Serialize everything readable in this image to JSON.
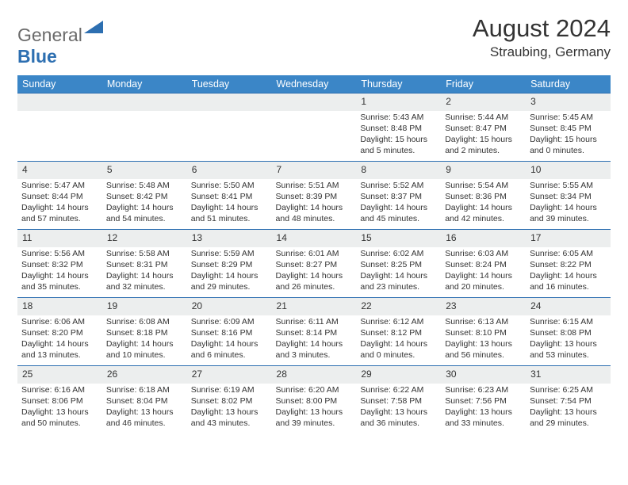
{
  "logo": {
    "text1": "General",
    "text2": "Blue"
  },
  "title": "August 2024",
  "subtitle": "Straubing, Germany",
  "colors": {
    "header_bg": "#3b86c7",
    "header_fg": "#ffffff",
    "daynum_bg": "#eceeee",
    "border": "#2d6fb1",
    "logo_gray": "#6b6b6b",
    "logo_blue": "#2d6fb1",
    "text": "#333333",
    "background": "#ffffff"
  },
  "weekdays": [
    "Sunday",
    "Monday",
    "Tuesday",
    "Wednesday",
    "Thursday",
    "Friday",
    "Saturday"
  ],
  "weeks": [
    [
      null,
      null,
      null,
      null,
      {
        "n": "1",
        "sr": "Sunrise: 5:43 AM",
        "ss": "Sunset: 8:48 PM",
        "d1": "Daylight: 15 hours",
        "d2": "and 5 minutes."
      },
      {
        "n": "2",
        "sr": "Sunrise: 5:44 AM",
        "ss": "Sunset: 8:47 PM",
        "d1": "Daylight: 15 hours",
        "d2": "and 2 minutes."
      },
      {
        "n": "3",
        "sr": "Sunrise: 5:45 AM",
        "ss": "Sunset: 8:45 PM",
        "d1": "Daylight: 15 hours",
        "d2": "and 0 minutes."
      }
    ],
    [
      {
        "n": "4",
        "sr": "Sunrise: 5:47 AM",
        "ss": "Sunset: 8:44 PM",
        "d1": "Daylight: 14 hours",
        "d2": "and 57 minutes."
      },
      {
        "n": "5",
        "sr": "Sunrise: 5:48 AM",
        "ss": "Sunset: 8:42 PM",
        "d1": "Daylight: 14 hours",
        "d2": "and 54 minutes."
      },
      {
        "n": "6",
        "sr": "Sunrise: 5:50 AM",
        "ss": "Sunset: 8:41 PM",
        "d1": "Daylight: 14 hours",
        "d2": "and 51 minutes."
      },
      {
        "n": "7",
        "sr": "Sunrise: 5:51 AM",
        "ss": "Sunset: 8:39 PM",
        "d1": "Daylight: 14 hours",
        "d2": "and 48 minutes."
      },
      {
        "n": "8",
        "sr": "Sunrise: 5:52 AM",
        "ss": "Sunset: 8:37 PM",
        "d1": "Daylight: 14 hours",
        "d2": "and 45 minutes."
      },
      {
        "n": "9",
        "sr": "Sunrise: 5:54 AM",
        "ss": "Sunset: 8:36 PM",
        "d1": "Daylight: 14 hours",
        "d2": "and 42 minutes."
      },
      {
        "n": "10",
        "sr": "Sunrise: 5:55 AM",
        "ss": "Sunset: 8:34 PM",
        "d1": "Daylight: 14 hours",
        "d2": "and 39 minutes."
      }
    ],
    [
      {
        "n": "11",
        "sr": "Sunrise: 5:56 AM",
        "ss": "Sunset: 8:32 PM",
        "d1": "Daylight: 14 hours",
        "d2": "and 35 minutes."
      },
      {
        "n": "12",
        "sr": "Sunrise: 5:58 AM",
        "ss": "Sunset: 8:31 PM",
        "d1": "Daylight: 14 hours",
        "d2": "and 32 minutes."
      },
      {
        "n": "13",
        "sr": "Sunrise: 5:59 AM",
        "ss": "Sunset: 8:29 PM",
        "d1": "Daylight: 14 hours",
        "d2": "and 29 minutes."
      },
      {
        "n": "14",
        "sr": "Sunrise: 6:01 AM",
        "ss": "Sunset: 8:27 PM",
        "d1": "Daylight: 14 hours",
        "d2": "and 26 minutes."
      },
      {
        "n": "15",
        "sr": "Sunrise: 6:02 AM",
        "ss": "Sunset: 8:25 PM",
        "d1": "Daylight: 14 hours",
        "d2": "and 23 minutes."
      },
      {
        "n": "16",
        "sr": "Sunrise: 6:03 AM",
        "ss": "Sunset: 8:24 PM",
        "d1": "Daylight: 14 hours",
        "d2": "and 20 minutes."
      },
      {
        "n": "17",
        "sr": "Sunrise: 6:05 AM",
        "ss": "Sunset: 8:22 PM",
        "d1": "Daylight: 14 hours",
        "d2": "and 16 minutes."
      }
    ],
    [
      {
        "n": "18",
        "sr": "Sunrise: 6:06 AM",
        "ss": "Sunset: 8:20 PM",
        "d1": "Daylight: 14 hours",
        "d2": "and 13 minutes."
      },
      {
        "n": "19",
        "sr": "Sunrise: 6:08 AM",
        "ss": "Sunset: 8:18 PM",
        "d1": "Daylight: 14 hours",
        "d2": "and 10 minutes."
      },
      {
        "n": "20",
        "sr": "Sunrise: 6:09 AM",
        "ss": "Sunset: 8:16 PM",
        "d1": "Daylight: 14 hours",
        "d2": "and 6 minutes."
      },
      {
        "n": "21",
        "sr": "Sunrise: 6:11 AM",
        "ss": "Sunset: 8:14 PM",
        "d1": "Daylight: 14 hours",
        "d2": "and 3 minutes."
      },
      {
        "n": "22",
        "sr": "Sunrise: 6:12 AM",
        "ss": "Sunset: 8:12 PM",
        "d1": "Daylight: 14 hours",
        "d2": "and 0 minutes."
      },
      {
        "n": "23",
        "sr": "Sunrise: 6:13 AM",
        "ss": "Sunset: 8:10 PM",
        "d1": "Daylight: 13 hours",
        "d2": "and 56 minutes."
      },
      {
        "n": "24",
        "sr": "Sunrise: 6:15 AM",
        "ss": "Sunset: 8:08 PM",
        "d1": "Daylight: 13 hours",
        "d2": "and 53 minutes."
      }
    ],
    [
      {
        "n": "25",
        "sr": "Sunrise: 6:16 AM",
        "ss": "Sunset: 8:06 PM",
        "d1": "Daylight: 13 hours",
        "d2": "and 50 minutes."
      },
      {
        "n": "26",
        "sr": "Sunrise: 6:18 AM",
        "ss": "Sunset: 8:04 PM",
        "d1": "Daylight: 13 hours",
        "d2": "and 46 minutes."
      },
      {
        "n": "27",
        "sr": "Sunrise: 6:19 AM",
        "ss": "Sunset: 8:02 PM",
        "d1": "Daylight: 13 hours",
        "d2": "and 43 minutes."
      },
      {
        "n": "28",
        "sr": "Sunrise: 6:20 AM",
        "ss": "Sunset: 8:00 PM",
        "d1": "Daylight: 13 hours",
        "d2": "and 39 minutes."
      },
      {
        "n": "29",
        "sr": "Sunrise: 6:22 AM",
        "ss": "Sunset: 7:58 PM",
        "d1": "Daylight: 13 hours",
        "d2": "and 36 minutes."
      },
      {
        "n": "30",
        "sr": "Sunrise: 6:23 AM",
        "ss": "Sunset: 7:56 PM",
        "d1": "Daylight: 13 hours",
        "d2": "and 33 minutes."
      },
      {
        "n": "31",
        "sr": "Sunrise: 6:25 AM",
        "ss": "Sunset: 7:54 PM",
        "d1": "Daylight: 13 hours",
        "d2": "and 29 minutes."
      }
    ]
  ]
}
